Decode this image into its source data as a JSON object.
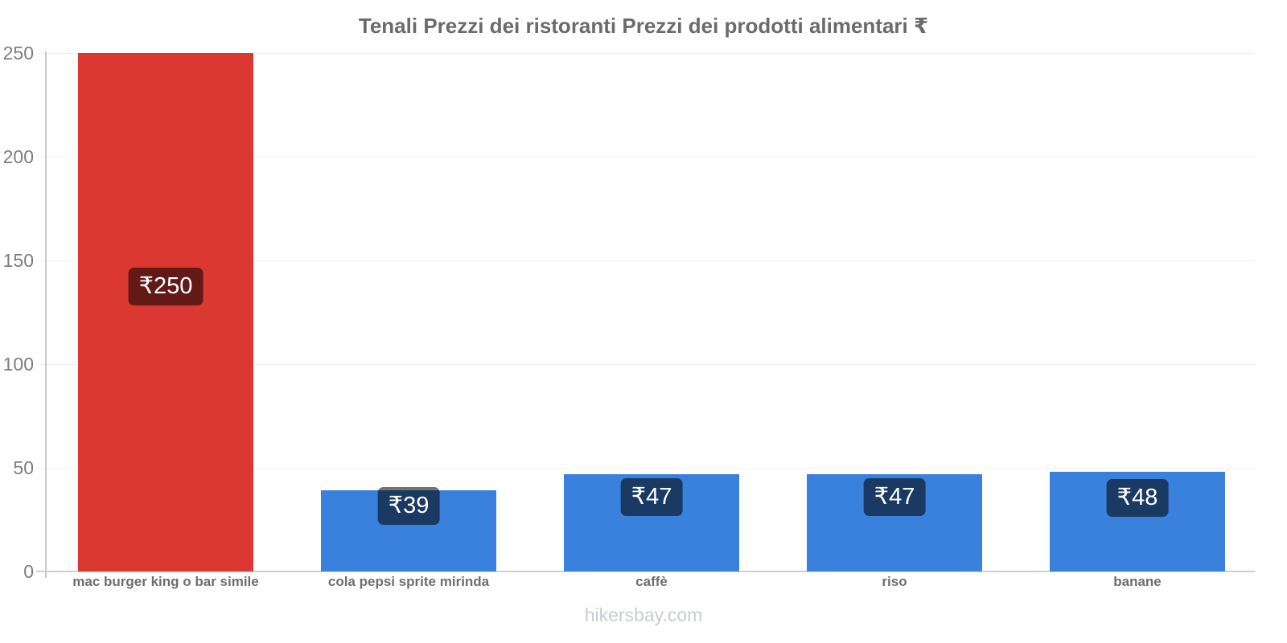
{
  "chart_data": {
    "type": "bar",
    "title": "Tenali Prezzi dei ristoranti Prezzi dei prodotti alimentari ₹",
    "categories": [
      "mac burger king o bar simile",
      "cola pepsi sprite mirinda",
      "caffè",
      "riso",
      "banane"
    ],
    "values": [
      250,
      39,
      47,
      47,
      48
    ],
    "value_labels": [
      "₹250",
      "₹39",
      "₹47",
      "₹47",
      "₹48"
    ],
    "currency_symbol": "₹",
    "bar_colors": [
      "#dc3832",
      "#3a81de",
      "#3a81de",
      "#3a81de",
      "#3a81de"
    ],
    "value_label_bg": "rgba(0,0,0,0.55)",
    "value_label_text_color": "#ffffff",
    "xlabel": "",
    "ylabel": "",
    "ylim": [
      0,
      250
    ],
    "yticks": [
      0,
      50,
      100,
      150,
      200,
      250
    ],
    "grid": true,
    "legend": false
  },
  "footer": {
    "text": "hikersbay.com"
  }
}
